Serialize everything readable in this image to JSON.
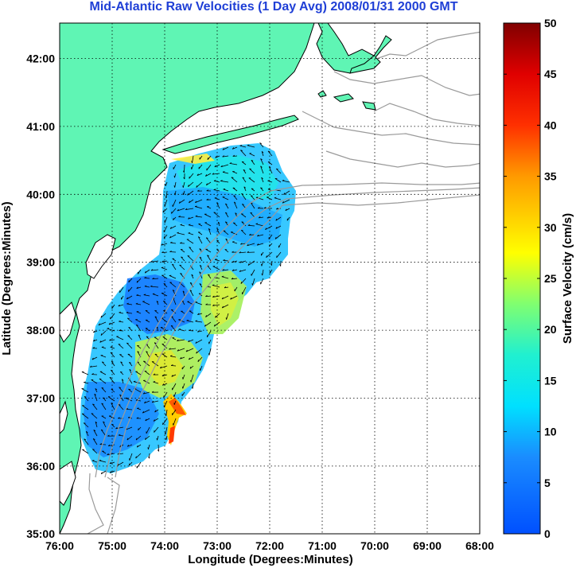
{
  "title": "Mid-Atlantic Raw Velocities (1 Day Avg) 2008/01/31 2000 GMT",
  "x_axis": {
    "label": "Longitude (Degrees:Minutes)",
    "ticks": [
      "76:00",
      "75:00",
      "74:00",
      "73:00",
      "72:00",
      "71:00",
      "70:00",
      "69:00",
      "68:00"
    ]
  },
  "y_axis": {
    "label": "Latitude (Degrees:Minutes)",
    "ticks": [
      "42:00",
      "41:00",
      "40:00",
      "39:00",
      "38:00",
      "37:00",
      "36:00",
      "35:00"
    ]
  },
  "colorbar": {
    "label": "Surface Velocity (cm/s)",
    "ticks": [
      "50",
      "45",
      "40",
      "35",
      "30",
      "25",
      "20",
      "15",
      "10",
      "5",
      "0"
    ],
    "min": 0,
    "max": 50
  },
  "colors": {
    "title": "#1f3fd6",
    "land": "#5ff5b4",
    "coast": "#000000",
    "bathymetry": "#9a9a9a",
    "arrows": "#000000"
  }
}
